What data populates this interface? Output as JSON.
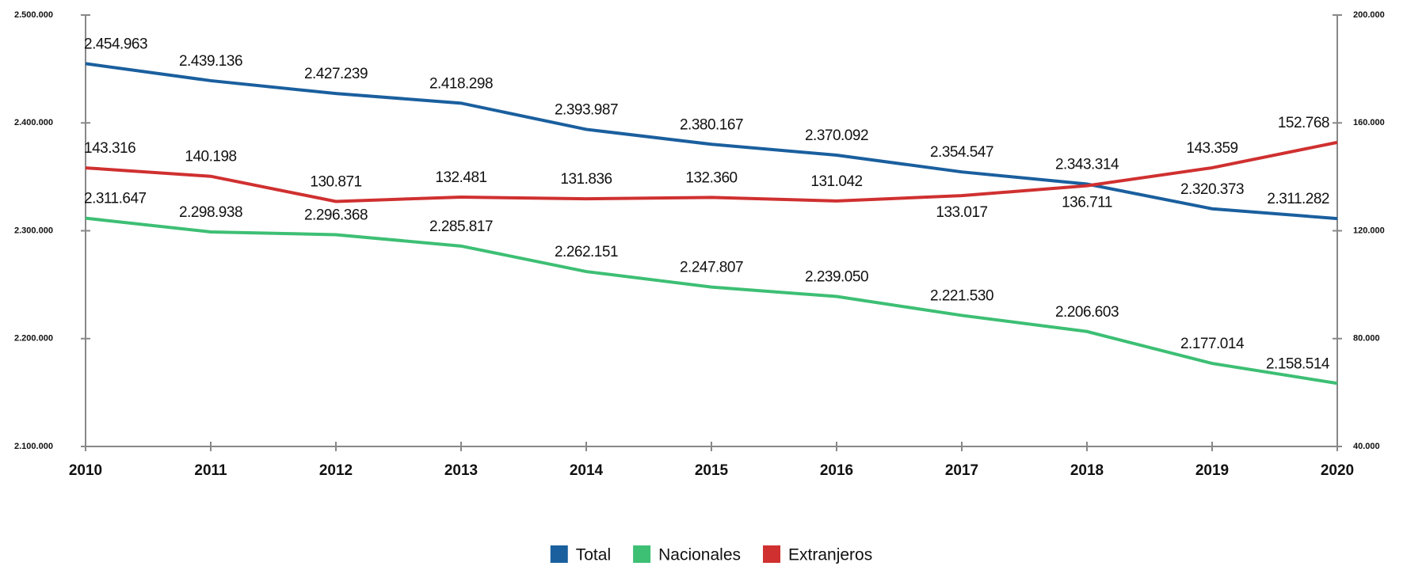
{
  "chart_data": {
    "type": "line",
    "categories": [
      "2010",
      "2011",
      "2012",
      "2013",
      "2014",
      "2015",
      "2016",
      "2017",
      "2018",
      "2019",
      "2020"
    ],
    "series": [
      {
        "name": "Total",
        "color": "#1a5f9e",
        "axis": "y",
        "values": [
          2454963,
          2439136,
          2427239,
          2418298,
          2393987,
          2380167,
          2370092,
          2354547,
          2343314,
          2320373,
          2311282
        ],
        "value_labels": [
          "2.454.963",
          "2.439.136",
          "2.427.239",
          "2.418.298",
          "2.393.987",
          "2.380.167",
          "2.370.092",
          "2.354.547",
          "2.343.314",
          "2.320.373",
          "2.311.282"
        ]
      },
      {
        "name": "Nacionales",
        "color": "#3dbf74",
        "axis": "y",
        "values": [
          2311647,
          2298938,
          2296368,
          2285817,
          2262151,
          2247807,
          2239050,
          2221530,
          2206603,
          2177014,
          2158514
        ],
        "value_labels": [
          "2.311.647",
          "2.298.938",
          "2.296.368",
          "2.285.817",
          "2.262.151",
          "2.247.807",
          "2.239.050",
          "2.221.530",
          "2.206.603",
          "2.177.014",
          "2.158.514"
        ]
      },
      {
        "name": "Extranjeros",
        "color": "#d03030",
        "axis": "y2",
        "values": [
          143316,
          140198,
          130871,
          132481,
          131836,
          132360,
          131042,
          133017,
          136711,
          143359,
          152768
        ],
        "value_labels": [
          "143.316",
          "140.198",
          "130.871",
          "132.481",
          "131.836",
          "132.360",
          "131.042",
          "133.017",
          "136.711",
          "143.359",
          "152.768"
        ]
      }
    ],
    "ylim": [
      2100000,
      2500000
    ],
    "yticks": [
      {
        "value": 2100000,
        "label": "2.100.000"
      },
      {
        "value": 2200000,
        "label": "2.200.000"
      },
      {
        "value": 2300000,
        "label": "2.300.000"
      },
      {
        "value": 2400000,
        "label": "2.400.000"
      },
      {
        "value": 2500000,
        "label": "2.500.000"
      }
    ],
    "y2lim": [
      40000,
      200000
    ],
    "y2ticks": [
      {
        "value": 40000,
        "label": "40.000"
      },
      {
        "value": 80000,
        "label": "80.000"
      },
      {
        "value": 120000,
        "label": "120.000"
      },
      {
        "value": 160000,
        "label": "160.000"
      },
      {
        "value": 200000,
        "label": "200.000"
      }
    ],
    "legend": "bottom"
  }
}
